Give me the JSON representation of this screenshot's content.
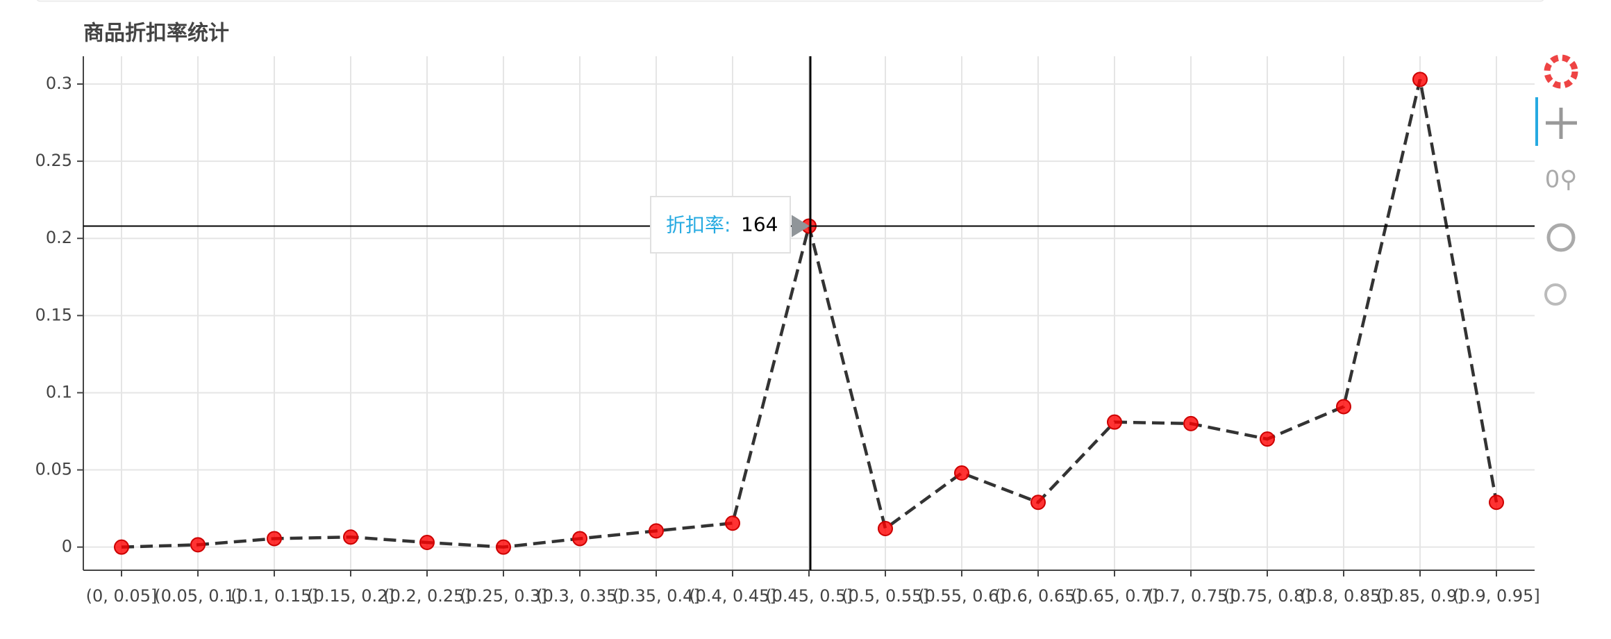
{
  "chart_data": {
    "type": "line",
    "title": "商品折扣率统计",
    "categories": [
      "(0, 0.05]",
      "(0.05, 0.1]",
      "(0.1, 0.15]",
      "(0.15, 0.2]",
      "(0.2, 0.25]",
      "(0.25, 0.3]",
      "(0.3, 0.35]",
      "(0.35, 0.4]",
      "(0.4, 0.45]",
      "(0.45, 0.5]",
      "(0.5, 0.55]",
      "(0.55, 0.6]",
      "(0.6, 0.65]",
      "(0.65, 0.7]",
      "(0.7, 0.75]",
      "(0.75, 0.8]",
      "(0.8, 0.85]",
      "(0.85, 0.9]",
      "(0.9, 0.95]"
    ],
    "values": [
      0,
      0.0015,
      0.0055,
      0.0065,
      0.003,
      0,
      0.0055,
      0.0105,
      0.0155,
      0.208,
      0.012,
      0.048,
      0.029,
      0.081,
      0.08,
      0.07,
      0.091,
      0.303,
      0.029
    ],
    "color": "#ff0000",
    "line_color": "#333333",
    "ylim": [
      -0.015,
      0.318
    ],
    "yticks": [
      0,
      0.05,
      0.1,
      0.15,
      0.2,
      0.25,
      0.3
    ],
    "grid": true,
    "tooltip": {
      "label": "折扣率:",
      "value": 164
    }
  }
}
